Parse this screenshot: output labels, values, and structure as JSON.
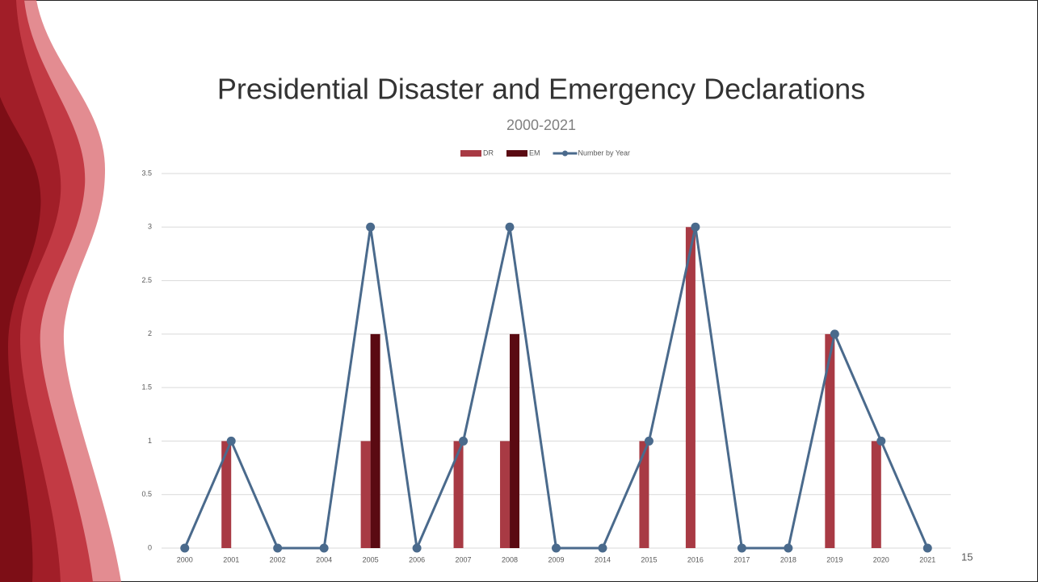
{
  "chart_data": {
    "type": "bar",
    "title": "Presidential Disaster and Emergency Declarations",
    "subtitle": "2000-2021",
    "categories": [
      "2000",
      "2001",
      "2002",
      "2004",
      "2005",
      "2006",
      "2007",
      "2008",
      "2009",
      "2014",
      "2015",
      "2016",
      "2017",
      "2018",
      "2019",
      "2020",
      "2021"
    ],
    "series": [
      {
        "name": "DR",
        "type": "bar",
        "color": "#a83a44",
        "values": [
          0,
          1,
          0,
          0,
          1,
          0,
          1,
          1,
          0,
          0,
          1,
          3,
          0,
          0,
          2,
          1,
          0
        ]
      },
      {
        "name": "EM",
        "type": "bar",
        "color": "#5a0a12",
        "values": [
          0,
          0,
          0,
          0,
          2,
          0,
          0,
          2,
          0,
          0,
          0,
          0,
          0,
          0,
          0,
          0,
          0
        ]
      },
      {
        "name": "Number by Year",
        "type": "line",
        "color": "#4a6a8c",
        "values": [
          0,
          1,
          0,
          0,
          3,
          0,
          1,
          3,
          0,
          0,
          1,
          3,
          0,
          0,
          2,
          1,
          0
        ]
      }
    ],
    "ylim": [
      0,
      3.5
    ],
    "yticks": [
      0,
      0.5,
      1,
      1.5,
      2,
      2.5,
      3,
      3.5
    ],
    "grid": true,
    "legend": "top",
    "slide_number": "15"
  }
}
